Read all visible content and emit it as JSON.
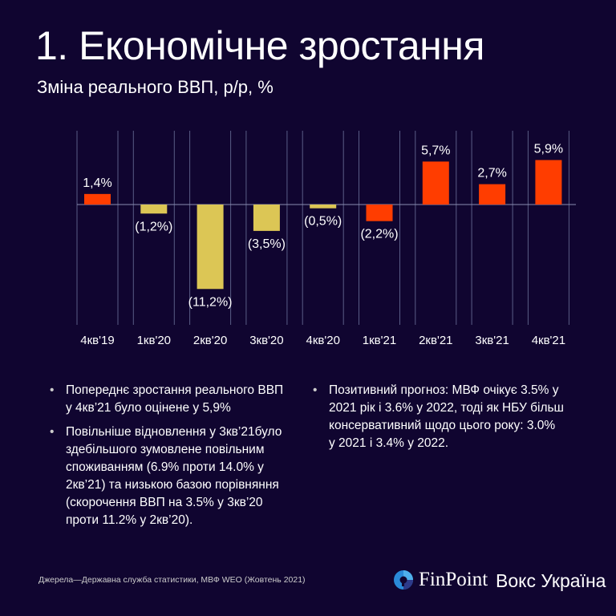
{
  "header": {
    "title": "1. Економічне зростання",
    "subtitle": "Зміна реального ВВП, р/р, %"
  },
  "chart_data": {
    "type": "bar",
    "title": "Зміна реального ВВП, р/р, %",
    "categories": [
      "4кв'19",
      "1кв'20",
      "2кв'20",
      "3кв'20",
      "4кв'20",
      "1кв'21",
      "2кв'21",
      "3кв'21",
      "4кв'21"
    ],
    "values": [
      1.4,
      -1.2,
      -11.2,
      -3.5,
      -0.5,
      -2.2,
      5.7,
      2.7,
      5.9
    ],
    "labels": [
      "1,4%",
      "(1,2%)",
      "(11,2%)",
      "(3,5%)",
      "(0,5%)",
      "(2,2%)",
      "5,7%",
      "2,7%",
      "5,9%"
    ],
    "bar_colors": [
      "#ff3d00",
      "#dcc655",
      "#dcc655",
      "#dcc655",
      "#dcc655",
      "#ff3d00",
      "#ff3d00",
      "#ff3d00",
      "#ff3d00"
    ],
    "xlabel": "",
    "ylabel": "",
    "ylim": [
      -11.2,
      8.5
    ],
    "grid": true
  },
  "bullets_left": [
    "Попереднє зростання реального ВВП у 4кв’21 було оцінене у 5,9%",
    "Повільніше відновлення у 3кв’21було здебільшого зумовлене повільним споживанням (6.9% проти 14.0% у 2кв’21) та низькою базою порівняння (скорочення ВВП на 3.5% у 3кв’20 проти 11.2% у 2кв’20)."
  ],
  "bullets_right": [
    "Позитивний прогноз: МВФ очікує 3.5% у 2021 рік і 3.6% у 2022, тоді як НБУ більш консервативний щодо цього року: 3.0% у 2021 і 3.4% у 2022."
  ],
  "footer": {
    "source": "Джерела—Державна служба статистики, МВФ WEO (Жовтень 2021)",
    "finpoint": "FinPoint",
    "vox": "Вокс Україна"
  }
}
